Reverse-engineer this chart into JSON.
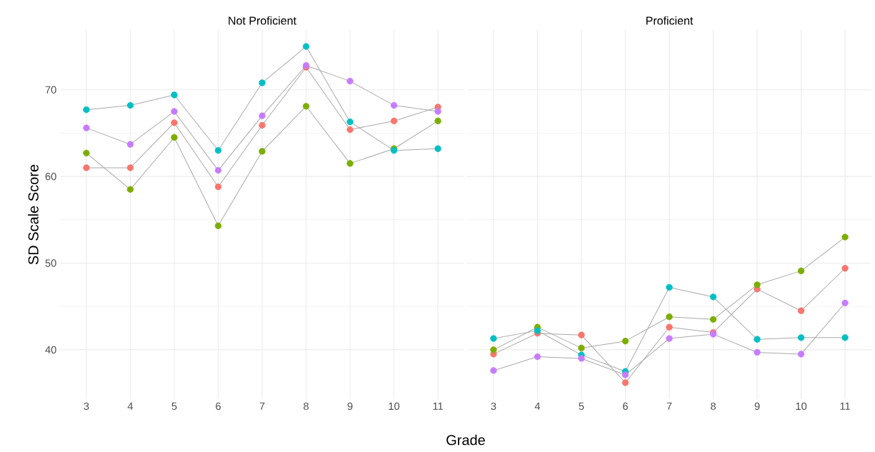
{
  "chart_data": [
    {
      "type": "line",
      "title": "Not Proficient",
      "xlabel": "Grade",
      "ylabel": "SD Scale Score",
      "categories": [
        "3",
        "4",
        "5",
        "6",
        "7",
        "8",
        "9",
        "10",
        "11"
      ],
      "ylim": [
        34.3,
        76.9
      ],
      "yticks": [
        40,
        50,
        60,
        70
      ],
      "grid": true,
      "marker": "circle",
      "line_style": "solid",
      "series": [
        {
          "color": "#f8766d",
          "values": [
            61.0,
            61.0,
            66.2,
            58.8,
            65.9,
            72.6,
            65.4,
            66.4,
            68.0
          ]
        },
        {
          "color": "#7cae00",
          "values": [
            62.7,
            58.5,
            64.5,
            54.3,
            62.9,
            68.1,
            61.5,
            63.2,
            66.4
          ]
        },
        {
          "color": "#00bfc4",
          "values": [
            67.7,
            68.2,
            69.4,
            63.0,
            70.8,
            75.0,
            66.3,
            63.0,
            63.2
          ]
        },
        {
          "color": "#c77cff",
          "values": [
            65.6,
            63.7,
            67.5,
            60.7,
            67.0,
            72.8,
            71.0,
            68.2,
            67.5
          ]
        }
      ]
    },
    {
      "type": "line",
      "title": "Proficient",
      "categories": [
        "3",
        "4",
        "5",
        "6",
        "7",
        "8",
        "9",
        "10",
        "11"
      ],
      "ylim": [
        34.3,
        76.9
      ],
      "yticks": [
        40,
        50,
        60,
        70
      ],
      "grid": true,
      "marker": "circle",
      "line_style": "solid",
      "tick_labels": "x",
      "series": [
        {
          "color": "#f8766d",
          "values": [
            39.5,
            41.9,
            41.7,
            36.2,
            42.6,
            42.0,
            47.0,
            44.5,
            49.4
          ]
        },
        {
          "color": "#7cae00",
          "values": [
            40.0,
            42.6,
            40.2,
            41.0,
            43.8,
            43.5,
            47.5,
            49.1,
            53.0
          ]
        },
        {
          "color": "#00bfc4",
          "values": [
            41.3,
            42.2,
            39.4,
            37.5,
            47.2,
            46.1,
            41.2,
            41.4,
            41.4
          ]
        },
        {
          "color": "#c77cff",
          "values": [
            37.6,
            39.2,
            39.0,
            37.1,
            41.3,
            41.8,
            39.7,
            39.5,
            45.4
          ]
        }
      ]
    }
  ]
}
